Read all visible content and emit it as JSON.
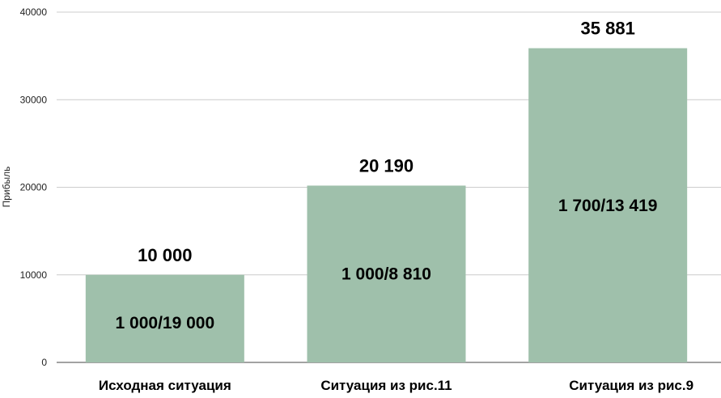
{
  "chart_data": {
    "type": "bar",
    "ylabel": "Прибыль",
    "xlabel": "",
    "ylim": [
      0,
      40000
    ],
    "yticks": [
      0,
      10000,
      20000,
      30000,
      40000
    ],
    "grid": true,
    "categories": [
      "Исходная ситуация",
      "Ситуация из рис.11",
      "Ситуация из рис.9"
    ],
    "values": [
      10000,
      20190,
      35881
    ],
    "value_labels": [
      "10 000",
      "20 190",
      "35 881"
    ],
    "inner_labels": [
      "1 000/19 000",
      "1 000/8 810",
      "1 700/13 419"
    ],
    "bar_color": "#9fc0ab",
    "grid_color": "#cccccc"
  }
}
